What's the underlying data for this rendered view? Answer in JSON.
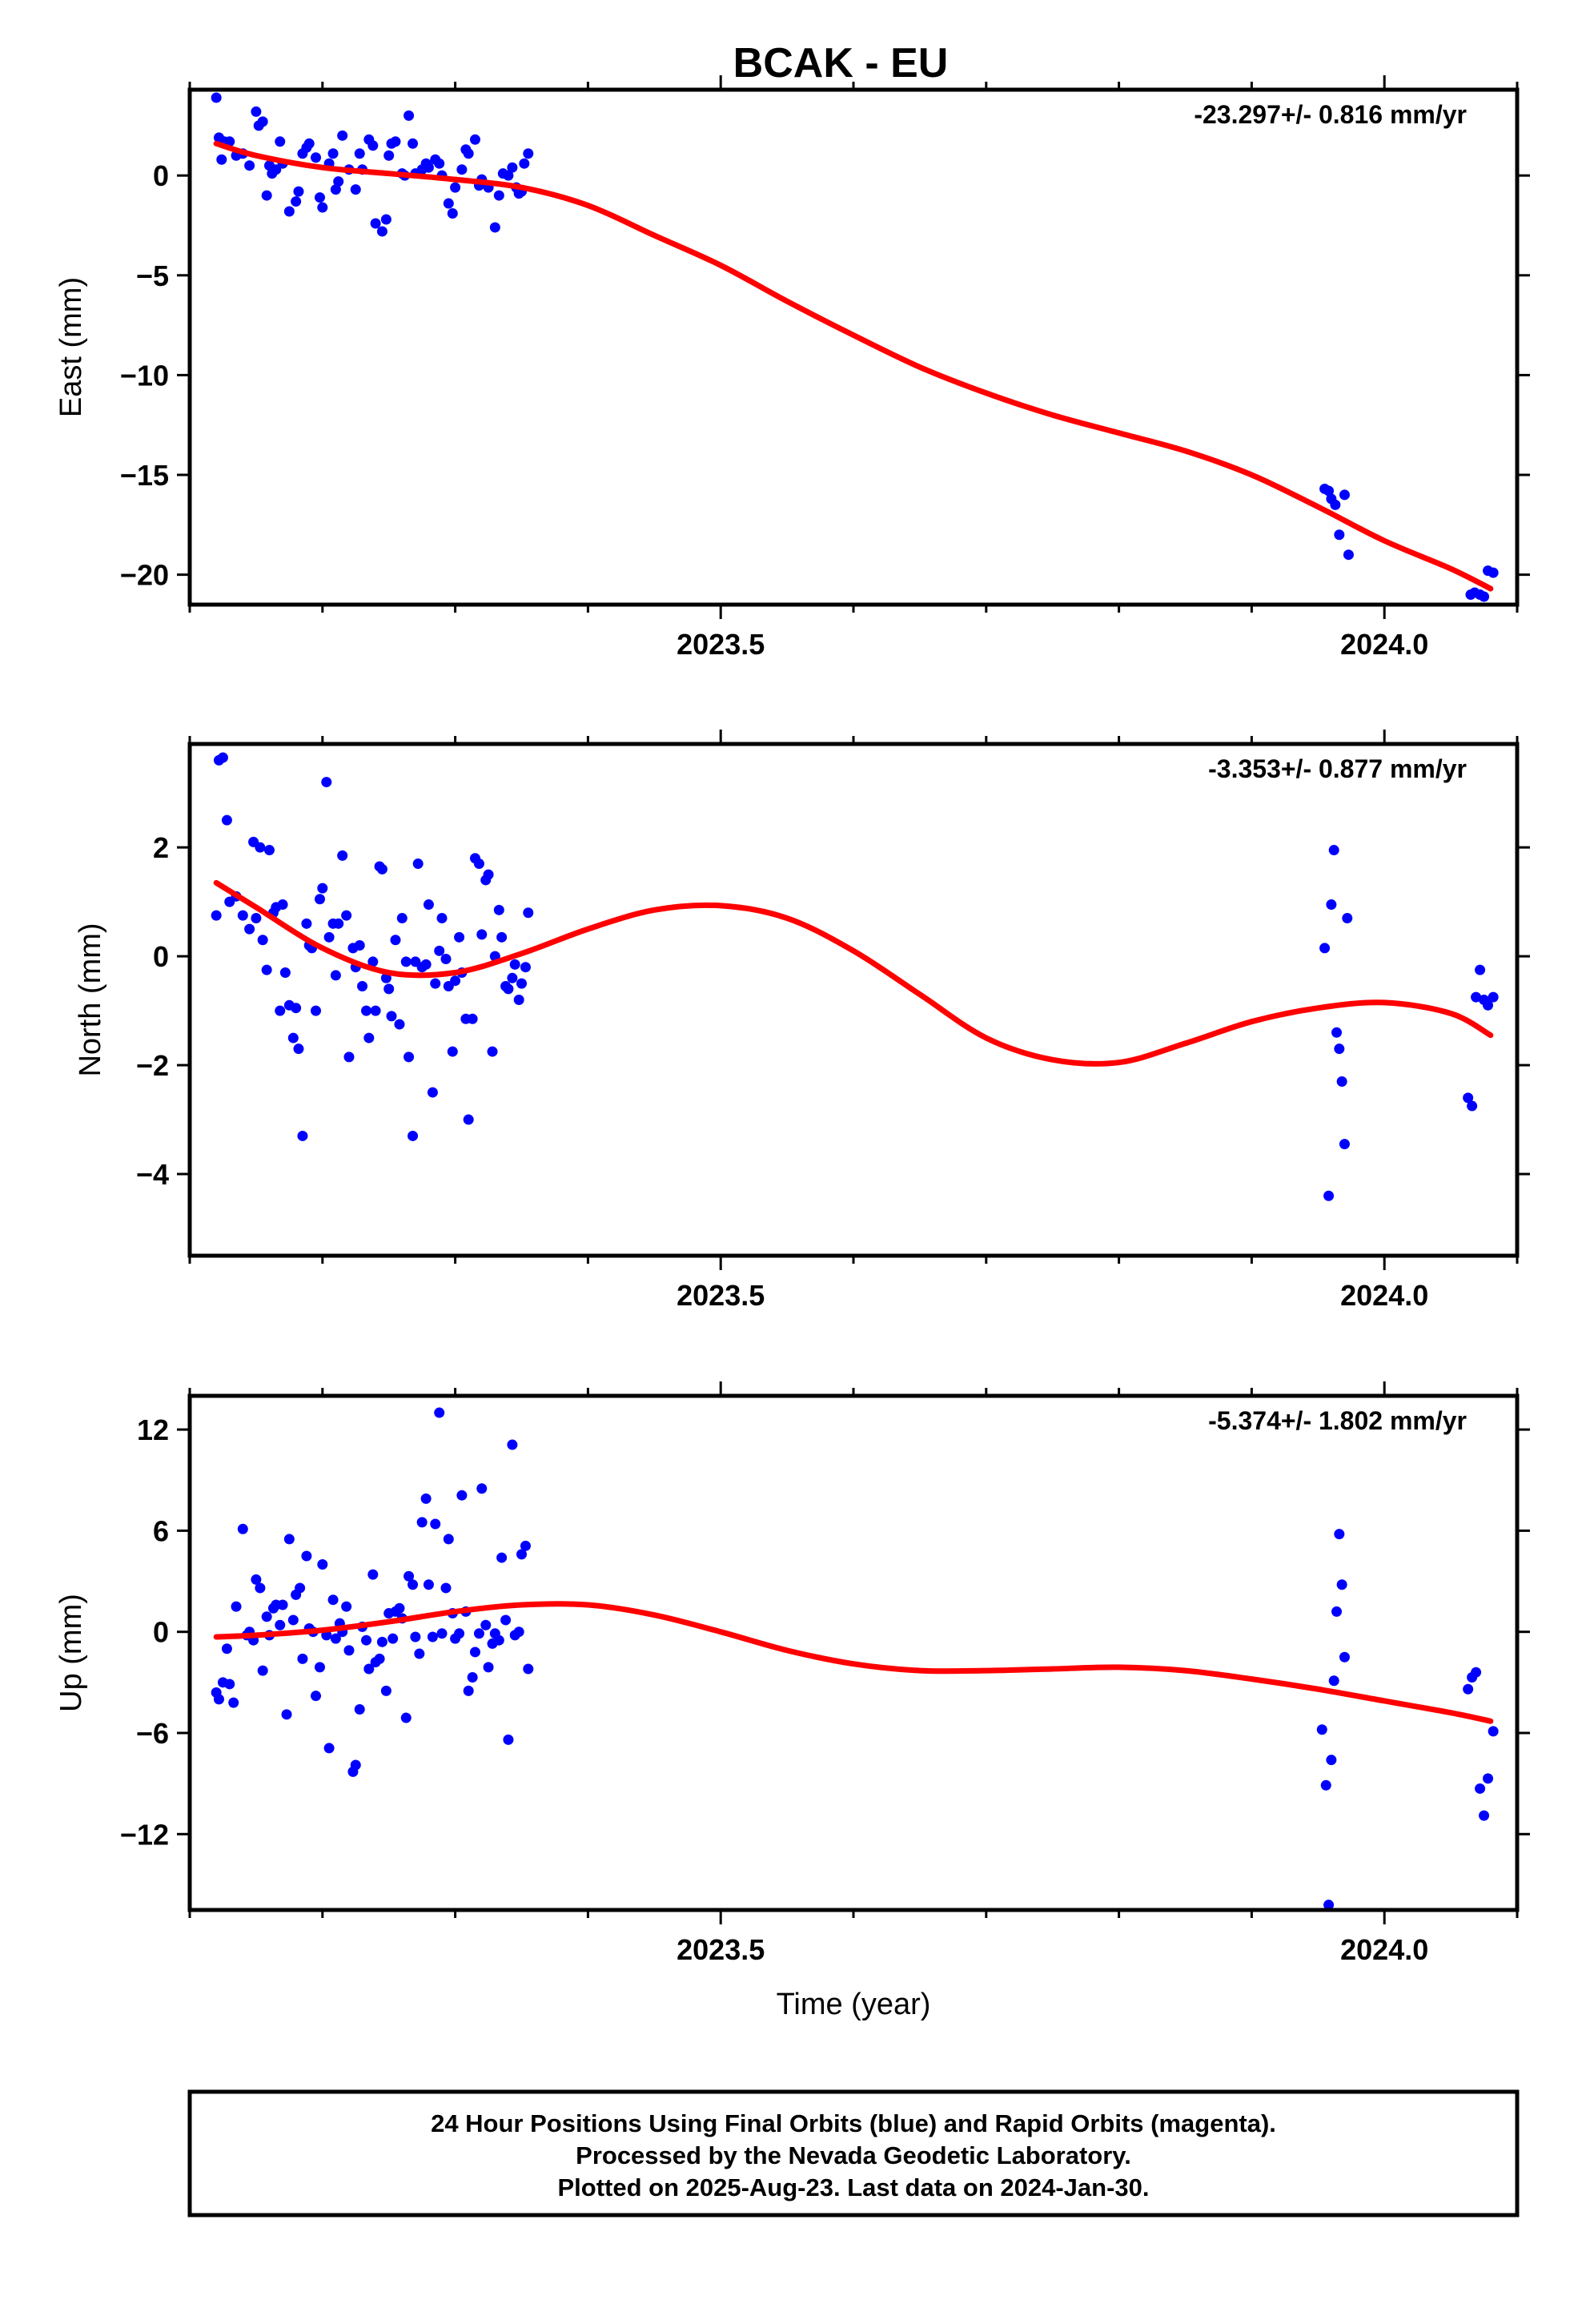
{
  "footer": {
    "line1": "24 Hour Positions Using Final Orbits (blue) and Rapid Orbits (magenta).",
    "line2": "Processed by the Nevada Geodetic Laboratory.",
    "line3": "Plotted on 2025-Aug-23. Last data on 2024-Jan-30."
  },
  "colors": {
    "final_orbits": "#0000ff",
    "rapid_orbits": "#ff00ff",
    "fit": "#ff0000",
    "frame": "#000000"
  },
  "chart_data": [
    {
      "type": "scatter",
      "title": "BCAK - EU",
      "xlabel": "",
      "ylabel": "East (mm)",
      "rate_label": "-23.297+/- 0.816 mm/yr",
      "xlim": [
        2023.1,
        2024.1
      ],
      "ylim": [
        -21.5,
        4.3
      ],
      "xticks": [
        2023.5,
        2024.0
      ],
      "xtick_labels": [
        "2023.5",
        "2024.0"
      ],
      "yticks": [
        0,
        -5,
        -10,
        -15,
        -20
      ],
      "ytick_labels": [
        "0",
        "−5",
        "−10",
        "−15",
        "−20"
      ],
      "grid": false,
      "series": [
        {
          "kind": "points",
          "x": [
            2023.12,
            2023.122,
            2023.124,
            2023.126,
            2023.128,
            2023.13,
            2023.135,
            2023.14,
            2023.145,
            2023.15,
            2023.152,
            2023.155,
            2023.158,
            2023.16,
            2023.162,
            2023.165,
            2023.168,
            2023.17,
            2023.175,
            2023.18,
            2023.182,
            2023.185,
            2023.188,
            2023.19,
            2023.195,
            2023.198,
            2023.2,
            2023.205,
            2023.208,
            2023.21,
            2023.212,
            2023.215,
            2023.22,
            2023.225,
            2023.228,
            2023.23,
            2023.235,
            2023.238,
            2023.24,
            2023.245,
            2023.248,
            2023.25,
            2023.252,
            2023.255,
            2023.26,
            2023.262,
            2023.265,
            2023.268,
            2023.27,
            2023.275,
            2023.278,
            2023.28,
            2023.285,
            2023.288,
            2023.29,
            2023.295,
            2023.298,
            2023.3,
            2023.305,
            2023.308,
            2023.31,
            2023.315,
            2023.318,
            2023.32,
            2023.325,
            2023.33,
            2023.333,
            2023.336,
            2023.34,
            2023.343,
            2023.346,
            2023.348,
            2023.35,
            2023.352,
            2023.355,
            2023.955,
            2023.958,
            2023.96,
            2023.963,
            2023.966,
            2023.97,
            2023.973,
            2024.065,
            2024.068,
            2024.072,
            2024.075,
            2024.078,
            2024.082
          ],
          "y": [
            3.9,
            1.9,
            0.8,
            1.7,
            1.6,
            1.7,
            1.0,
            1.1,
            0.5,
            3.2,
            2.5,
            2.7,
            -1.0,
            0.5,
            0.1,
            0.3,
            1.7,
            0.6,
            -1.8,
            -1.3,
            -0.8,
            1.1,
            1.4,
            1.6,
            0.9,
            -1.1,
            -1.6,
            0.6,
            1.1,
            -0.7,
            -0.3,
            2.0,
            0.3,
            -0.7,
            1.1,
            0.3,
            1.8,
            1.5,
            -2.4,
            -2.8,
            -2.2,
            1.0,
            1.6,
            1.7,
            0.1,
            0.0,
            3.0,
            1.6,
            0.1,
            0.3,
            0.6,
            0.4,
            0.8,
            0.6,
            0.0,
            -1.4,
            -1.9,
            -0.6,
            0.3,
            1.3,
            1.1,
            1.8,
            -0.5,
            -0.2,
            -0.6,
            -2.6,
            -1.0,
            0.1,
            0.0,
            0.4,
            -0.6,
            -0.9,
            -0.8,
            0.6,
            1.1,
            -15.7,
            -15.8,
            -16.2,
            -16.5,
            -18.0,
            -16.0,
            -19.0,
            -21.0,
            -20.9,
            -21.0,
            -21.1,
            -19.8,
            -19.9
          ],
          "color": "#0000ff"
        },
        {
          "kind": "line",
          "x": [
            2023.12,
            2023.15,
            2023.2,
            2023.25,
            2023.3,
            2023.35,
            2023.4,
            2023.45,
            2023.5,
            2023.55,
            2023.6,
            2023.65,
            2023.7,
            2023.75,
            2023.8,
            2023.85,
            2023.9,
            2023.95,
            2024.0,
            2024.05,
            2024.08
          ],
          "y": [
            1.6,
            1.0,
            0.4,
            0.1,
            -0.2,
            -0.6,
            -1.5,
            -3.0,
            -4.5,
            -6.3,
            -8.0,
            -9.6,
            -10.9,
            -12.0,
            -12.9,
            -13.8,
            -15.0,
            -16.6,
            -18.3,
            -19.7,
            -20.7
          ],
          "color": "#ff0000"
        }
      ]
    },
    {
      "type": "scatter",
      "title": "",
      "xlabel": "",
      "ylabel": "North (mm)",
      "rate_label": "-3.353+/- 0.877 mm/yr",
      "xlim": [
        2023.1,
        2024.1
      ],
      "ylim": [
        -5.5,
        3.9
      ],
      "xticks": [
        2023.5,
        2024.0
      ],
      "xtick_labels": [
        "2023.5",
        "2024.0"
      ],
      "yticks": [
        2,
        0,
        -2,
        -4
      ],
      "ytick_labels": [
        "2",
        "0",
        "−2",
        "−4"
      ],
      "grid": false,
      "series": [
        {
          "kind": "points",
          "x": [
            2023.12,
            2023.122,
            2023.125,
            2023.128,
            2023.13,
            2023.135,
            2023.14,
            2023.145,
            2023.148,
            2023.15,
            2023.153,
            2023.155,
            2023.158,
            2023.16,
            2023.163,
            2023.165,
            2023.168,
            2023.17,
            2023.172,
            2023.175,
            2023.178,
            2023.18,
            2023.182,
            2023.185,
            2023.188,
            2023.19,
            2023.192,
            2023.195,
            2023.198,
            2023.2,
            2023.203,
            2023.205,
            2023.208,
            2023.21,
            2023.212,
            2023.215,
            2023.218,
            2023.22,
            2023.223,
            2023.225,
            2023.228,
            2023.23,
            2023.233,
            2023.235,
            2023.238,
            2023.24,
            2023.243,
            2023.245,
            2023.248,
            2023.25,
            2023.252,
            2023.255,
            2023.258,
            2023.26,
            2023.263,
            2023.265,
            2023.268,
            2023.27,
            2023.272,
            2023.275,
            2023.278,
            2023.28,
            2023.283,
            2023.285,
            2023.288,
            2023.29,
            2023.293,
            2023.295,
            2023.298,
            2023.3,
            2023.303,
            2023.305,
            2023.308,
            2023.31,
            2023.313,
            2023.315,
            2023.318,
            2023.32,
            2023.323,
            2023.325,
            2023.328,
            2023.33,
            2023.333,
            2023.335,
            2023.338,
            2023.34,
            2023.343,
            2023.345,
            2023.348,
            2023.35,
            2023.353,
            2023.355,
            2023.955,
            2023.958,
            2023.96,
            2023.962,
            2023.964,
            2023.966,
            2023.968,
            2023.97,
            2023.972,
            2024.063,
            2024.066,
            2024.069,
            2024.072,
            2024.075,
            2024.078,
            2024.082
          ],
          "y": [
            0.75,
            3.6,
            3.65,
            2.5,
            1.0,
            1.1,
            0.75,
            0.5,
            2.1,
            0.7,
            2.0,
            0.3,
            -0.25,
            1.95,
            0.8,
            0.9,
            -1.0,
            0.95,
            -0.3,
            -0.9,
            -1.5,
            -0.95,
            -1.7,
            -3.3,
            0.6,
            0.2,
            0.15,
            -1.0,
            1.05,
            1.25,
            3.2,
            0.35,
            0.6,
            -0.35,
            0.6,
            1.85,
            0.75,
            -1.85,
            0.15,
            -0.2,
            0.2,
            -0.55,
            -1.0,
            -1.5,
            -0.1,
            -1.0,
            1.65,
            1.6,
            -0.4,
            -0.6,
            -1.1,
            0.3,
            -1.25,
            0.7,
            -0.1,
            -1.85,
            -3.3,
            -0.1,
            1.7,
            -0.2,
            -0.15,
            0.95,
            -2.5,
            -0.5,
            0.1,
            0.7,
            -0.05,
            -0.55,
            -1.75,
            -0.45,
            0.35,
            -0.3,
            -1.15,
            -3.0,
            -1.15,
            1.8,
            1.7,
            0.4,
            1.4,
            1.5,
            -1.75,
            0.0,
            0.85,
            0.35,
            -0.55,
            -0.6,
            -0.4,
            -0.15,
            -0.8,
            -0.5,
            -0.2,
            0.8,
            0.15,
            -4.4,
            0.95,
            1.95,
            -1.4,
            -1.7,
            -2.3,
            -3.45,
            0.7,
            -2.6,
            -2.75,
            -0.75,
            -0.25,
            -0.8,
            -0.9,
            -0.75
          ],
          "color": "#0000ff"
        },
        {
          "kind": "line",
          "x": [
            2023.12,
            2023.15,
            2023.2,
            2023.25,
            2023.3,
            2023.35,
            2023.4,
            2023.45,
            2023.5,
            2023.55,
            2023.6,
            2023.65,
            2023.7,
            2023.75,
            2023.8,
            2023.85,
            2023.9,
            2023.95,
            2024.0,
            2024.05,
            2024.08
          ],
          "y": [
            1.35,
            0.9,
            0.15,
            -0.3,
            -0.3,
            0.05,
            0.5,
            0.85,
            0.93,
            0.7,
            0.1,
            -0.7,
            -1.5,
            -1.9,
            -1.95,
            -1.6,
            -1.2,
            -0.95,
            -0.85,
            -1.05,
            -1.45
          ],
          "color": "#ff0000"
        }
      ]
    },
    {
      "type": "scatter",
      "title": "",
      "xlabel": "Time (year)",
      "ylabel": "Up (mm)",
      "rate_label": "-5.374+/- 1.802 mm/yr",
      "xlim": [
        2023.1,
        2024.1
      ],
      "ylim": [
        -16.5,
        14.0
      ],
      "xticks": [
        2023.5,
        2024.0
      ],
      "xtick_labels": [
        "2023.5",
        "2024.0"
      ],
      "yticks": [
        12,
        6,
        0,
        -6,
        -12
      ],
      "ytick_labels": [
        "12",
        "6",
        "0",
        "−6",
        "−12"
      ],
      "grid": false,
      "series": [
        {
          "kind": "points",
          "x": [
            2023.12,
            2023.122,
            2023.125,
            2023.128,
            2023.13,
            2023.133,
            2023.135,
            2023.14,
            2023.143,
            2023.145,
            2023.148,
            2023.15,
            2023.153,
            2023.155,
            2023.158,
            2023.16,
            2023.163,
            2023.165,
            2023.168,
            2023.17,
            2023.173,
            2023.175,
            2023.178,
            2023.18,
            2023.183,
            2023.185,
            2023.188,
            2023.19,
            2023.193,
            2023.195,
            2023.198,
            2023.2,
            2023.203,
            2023.205,
            2023.208,
            2023.21,
            2023.213,
            2023.215,
            2023.218,
            2023.22,
            2023.223,
            2023.225,
            2023.228,
            2023.23,
            2023.233,
            2023.235,
            2023.238,
            2023.24,
            2023.243,
            2023.245,
            2023.248,
            2023.25,
            2023.253,
            2023.255,
            2023.258,
            2023.26,
            2023.263,
            2023.265,
            2023.268,
            2023.27,
            2023.273,
            2023.275,
            2023.278,
            2023.28,
            2023.283,
            2023.285,
            2023.288,
            2023.29,
            2023.293,
            2023.295,
            2023.298,
            2023.3,
            2023.303,
            2023.305,
            2023.308,
            2023.31,
            2023.313,
            2023.315,
            2023.318,
            2023.32,
            2023.323,
            2023.325,
            2023.328,
            2023.33,
            2023.333,
            2023.335,
            2023.338,
            2023.34,
            2023.343,
            2023.345,
            2023.348,
            2023.35,
            2023.353,
            2023.355,
            2023.953,
            2023.956,
            2023.958,
            2023.96,
            2023.962,
            2023.964,
            2023.966,
            2023.968,
            2023.97,
            2024.063,
            2024.066,
            2024.069,
            2024.072,
            2024.075,
            2024.078,
            2024.082
          ],
          "y": [
            -3.6,
            -4.0,
            -3.0,
            -1.0,
            -3.1,
            -4.2,
            1.5,
            6.1,
            -0.2,
            0.0,
            -0.5,
            3.1,
            2.6,
            -2.3,
            0.9,
            -0.2,
            1.4,
            1.6,
            0.4,
            1.6,
            -4.9,
            5.5,
            0.7,
            2.2,
            2.6,
            -1.6,
            4.5,
            0.2,
            0.0,
            -3.8,
            -2.1,
            4.0,
            -0.2,
            -6.9,
            1.9,
            -0.4,
            0.5,
            0.0,
            1.5,
            -1.1,
            -8.3,
            -7.9,
            -4.6,
            0.3,
            -0.5,
            -2.2,
            3.4,
            -1.8,
            -1.6,
            -0.6,
            -3.5,
            1.1,
            -0.4,
            1.2,
            1.4,
            0.8,
            -5.1,
            3.3,
            2.8,
            -0.3,
            -1.3,
            6.5,
            7.9,
            2.8,
            -0.3,
            6.4,
            13.0,
            -0.1,
            2.6,
            5.5,
            1.1,
            -0.4,
            -0.1,
            8.1,
            1.2,
            -3.5,
            -2.7,
            -1.2,
            -0.1,
            8.5,
            0.4,
            -2.1,
            -0.7,
            -0.1,
            -0.5,
            4.4,
            0.7,
            -6.4,
            11.1,
            -0.2,
            0.0,
            4.6,
            5.1,
            -2.2,
            -5.8,
            -9.1,
            -16.2,
            -7.6,
            -2.9,
            1.2,
            5.8,
            2.8,
            -1.5,
            -3.4,
            -2.7,
            -2.4,
            -9.3,
            -10.9,
            -8.7,
            -5.9
          ],
          "color": "#0000ff"
        },
        {
          "kind": "line",
          "x": [
            2023.12,
            2023.15,
            2023.2,
            2023.25,
            2023.3,
            2023.35,
            2023.4,
            2023.45,
            2023.5,
            2023.55,
            2023.6,
            2023.65,
            2023.7,
            2023.75,
            2023.8,
            2023.85,
            2023.9,
            2023.95,
            2024.0,
            2024.05,
            2024.08
          ],
          "y": [
            -0.3,
            -0.2,
            0.1,
            0.6,
            1.2,
            1.6,
            1.6,
            1.0,
            0.0,
            -1.1,
            -1.9,
            -2.3,
            -2.3,
            -2.2,
            -2.1,
            -2.3,
            -2.8,
            -3.4,
            -4.1,
            -4.8,
            -5.3
          ],
          "color": "#ff0000"
        }
      ]
    }
  ]
}
